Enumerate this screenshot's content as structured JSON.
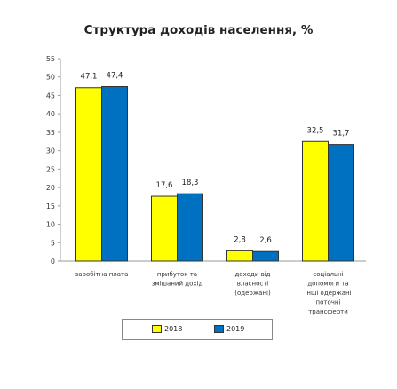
{
  "chart_data": {
    "type": "bar",
    "title": "Структура доходів населення, %",
    "categories": [
      [
        "заробітна плата"
      ],
      [
        "прибуток та",
        "змішаний дохід"
      ],
      [
        "доходи від",
        "власності",
        "(одержані)"
      ],
      [
        "соціальні",
        "допомоги та",
        "інші одержані",
        "поточні",
        "трансферти"
      ]
    ],
    "series": [
      {
        "name": "2018",
        "values": [
          47.1,
          17.6,
          2.8,
          32.5
        ],
        "labels": [
          "47,1",
          "17,6",
          "2,8",
          "32,5"
        ],
        "color": "#ffff00"
      },
      {
        "name": "2019",
        "values": [
          47.4,
          18.3,
          2.6,
          31.7
        ],
        "labels": [
          "47,4",
          "18,3",
          "2,6",
          "31,7"
        ],
        "color": "#0070c0"
      }
    ],
    "yticks": [
      "0",
      "5",
      "10",
      "15",
      "20",
      "25",
      "30",
      "35",
      "40",
      "45",
      "50",
      "55"
    ],
    "ylim": [
      0,
      55
    ],
    "legend_position": "bottom",
    "grid": false
  }
}
